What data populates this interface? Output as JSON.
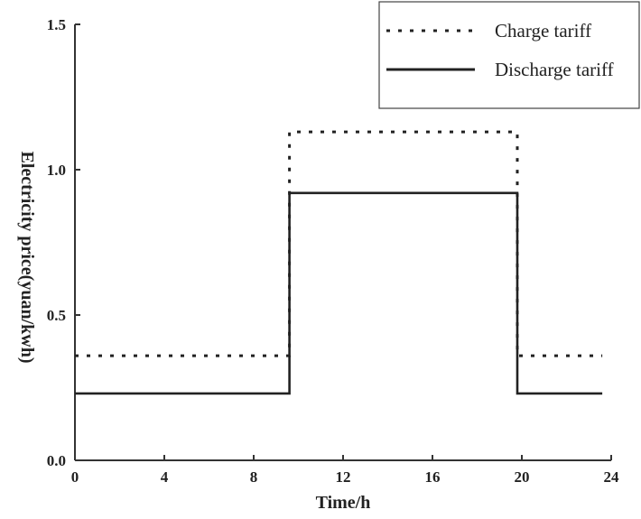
{
  "chart_data": {
    "type": "line",
    "xlabel": "Time/h",
    "ylabel": "Electricity price(yuan/kwh)",
    "xlim": [
      0,
      24
    ],
    "ylim": [
      0,
      1.5
    ],
    "x_ticks": [
      "0",
      "4",
      "8",
      "12",
      "16",
      "20",
      "24"
    ],
    "y_ticks": [
      "0.0",
      "0.5",
      "1.0",
      "1.5"
    ],
    "grid": false,
    "legend_position": "top-right",
    "series": [
      {
        "name": "Charge tariff",
        "style": "dotted",
        "color": "#222222",
        "points": [
          [
            0,
            0.36
          ],
          [
            9.6,
            0.36
          ],
          [
            9.6,
            1.13
          ],
          [
            19.8,
            1.13
          ],
          [
            19.8,
            0.36
          ],
          [
            23.6,
            0.36
          ]
        ]
      },
      {
        "name": "Discharge tariff",
        "style": "solid",
        "color": "#222222",
        "points": [
          [
            0,
            0.23
          ],
          [
            9.6,
            0.23
          ],
          [
            9.6,
            0.92
          ],
          [
            19.8,
            0.92
          ],
          [
            19.8,
            0.23
          ],
          [
            23.6,
            0.23
          ]
        ]
      }
    ]
  }
}
